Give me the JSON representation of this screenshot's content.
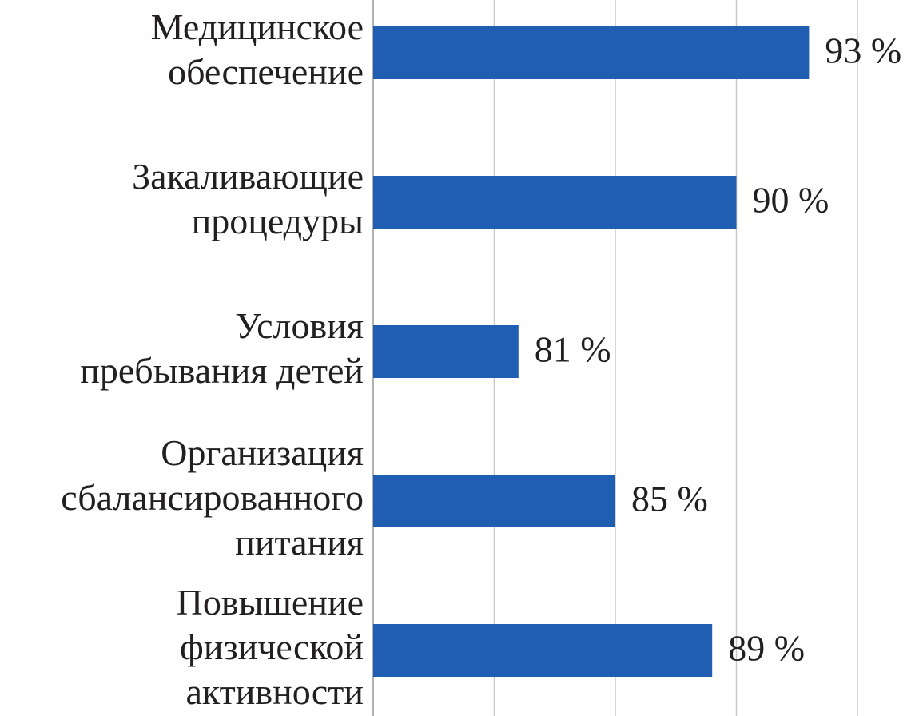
{
  "chart_data": {
    "type": "barh",
    "categories": [
      "Медицинское\nобеспечение",
      "Закаливающие\nпроцедуры",
      "Условия\nпребывания детей",
      "Организация\nсбалансированного\nпитания",
      "Повышение\nфизической\nактивности"
    ],
    "values": [
      93,
      90,
      81,
      85,
      89
    ],
    "value_labels": [
      "93 %",
      "90 %",
      "81 %",
      "85 %",
      "89 %"
    ],
    "color": "#1f5eb0",
    "xlim": [
      75,
      95
    ],
    "xticks": [
      75,
      80,
      85,
      90,
      95
    ],
    "grid": true,
    "tick_labels": false
  }
}
